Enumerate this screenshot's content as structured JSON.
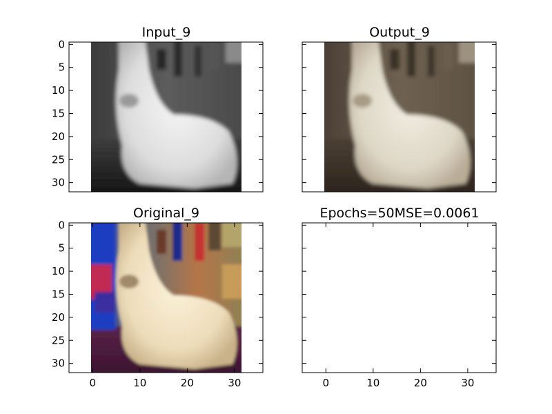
{
  "figure": {
    "background": "#ffffff"
  },
  "chart_data": [
    {
      "type": "image",
      "title": "Input_9",
      "image": {
        "description": "grayscale 32x32 CIFAR image of a white fluffy dog",
        "palette": "gray"
      },
      "xlim": [
        -5,
        36
      ],
      "ylim": [
        32,
        -0.5
      ],
      "yticks": [
        0,
        5,
        10,
        15,
        20,
        25,
        30
      ],
      "xticks": [],
      "show_x_tick_labels": false,
      "show_y_tick_labels": true
    },
    {
      "type": "image",
      "title": "Output_9",
      "image": {
        "description": "reconstructed sepia-toned 32x32 image of a white fluffy dog",
        "palette": "sepia"
      },
      "xlim": [
        -5,
        36
      ],
      "ylim": [
        32,
        -0.5
      ],
      "yticks": [
        0,
        5,
        10,
        15,
        20,
        25,
        30
      ],
      "xticks": [],
      "show_x_tick_labels": false,
      "show_y_tick_labels": false
    },
    {
      "type": "image",
      "title": "Original_9",
      "image": {
        "description": "color 32x32 CIFAR image of a cream-colored fluffy dog with blue and red background",
        "palette": "color"
      },
      "xlim": [
        -5,
        36
      ],
      "ylim": [
        32,
        -0.5
      ],
      "xticks": [
        0,
        10,
        20,
        30
      ],
      "yticks": [
        0,
        5,
        10,
        15,
        20,
        25,
        30
      ],
      "show_x_tick_labels": true,
      "show_y_tick_labels": true
    },
    {
      "type": "empty",
      "title": "Epochs=50MSE=0.0061",
      "xlim": [
        -5,
        36
      ],
      "ylim": [
        32,
        -0.5
      ],
      "xticks": [
        0,
        10,
        20,
        30
      ],
      "yticks": [
        0,
        5,
        10,
        15,
        20,
        25,
        30
      ],
      "show_x_tick_labels": true,
      "show_y_tick_labels": false
    }
  ]
}
